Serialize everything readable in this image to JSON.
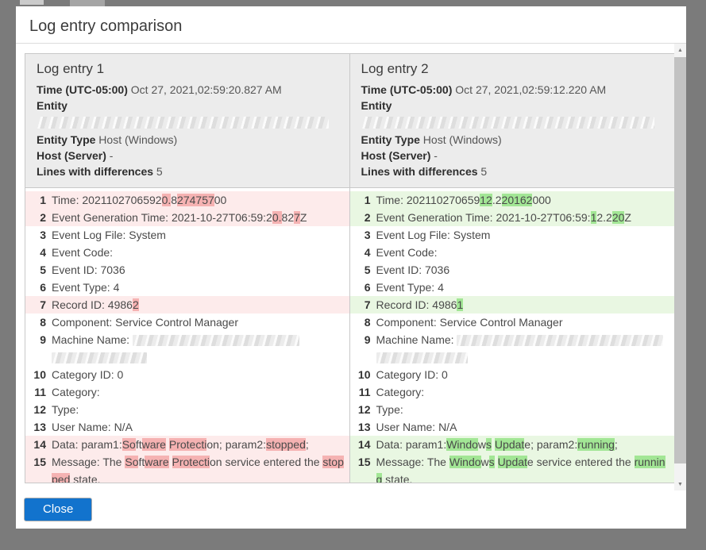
{
  "dialog": {
    "title": "Log entry comparison",
    "close_label": "Close"
  },
  "icons": {
    "scroll_up": "▲",
    "scroll_down": "▼"
  },
  "colors": {
    "backdrop": "#7b7b7b",
    "close_button": "#1273cd",
    "removed_row_bg": "#fdebeb",
    "removed_char_bg": "#f5b2b2",
    "added_row_bg": "#e9f7e2",
    "added_char_bg": "#a2e695",
    "panel_header_bg": "#ececec"
  },
  "panels": [
    {
      "title": "Log entry 1",
      "diff_color": "red",
      "fields": [
        {
          "label": "Time (UTC-05:00)",
          "value": "Oct 27, 2021,02:59:20.827 AM"
        },
        {
          "label": "Entity",
          "value": "",
          "redacted": true
        },
        {
          "label": "Entity Type",
          "value": "Host (Windows)"
        },
        {
          "label": "Host (Server)",
          "value": "-"
        },
        {
          "label": "Lines with differences",
          "value": "5"
        }
      ],
      "lines": [
        {
          "num": 1,
          "changed": true,
          "segments": [
            [
              "Time: 2021102706592",
              0
            ],
            [
              "0.",
              1
            ],
            [
              "8",
              0
            ],
            [
              "274757",
              1
            ],
            [
              "00",
              0
            ]
          ]
        },
        {
          "num": 2,
          "changed": true,
          "segments": [
            [
              "Event Generation Time: 2021-10-27T06:59:2",
              0
            ],
            [
              "0.",
              1
            ],
            [
              "82",
              0
            ],
            [
              "7",
              1
            ],
            [
              "Z",
              0
            ]
          ]
        },
        {
          "num": 3,
          "changed": false,
          "segments": [
            [
              "Event Log File: System",
              0
            ]
          ]
        },
        {
          "num": 4,
          "changed": false,
          "segments": [
            [
              "Event Code:",
              0
            ]
          ]
        },
        {
          "num": 5,
          "changed": false,
          "segments": [
            [
              "Event ID: 7036",
              0
            ]
          ]
        },
        {
          "num": 6,
          "changed": false,
          "segments": [
            [
              "Event Type: 4",
              0
            ]
          ]
        },
        {
          "num": 7,
          "changed": true,
          "segments": [
            [
              "Record ID: 4986",
              0
            ],
            [
              "2",
              1
            ]
          ]
        },
        {
          "num": 8,
          "changed": false,
          "segments": [
            [
              "Component: Service Control Manager",
              0
            ]
          ]
        },
        {
          "num": 9,
          "changed": false,
          "segments": [
            [
              "Machine Name: ",
              0
            ],
            {
              "redact": 210
            },
            {
              "br": true
            },
            {
              "redact": 120
            }
          ]
        },
        {
          "num": 10,
          "changed": false,
          "segments": [
            [
              "Category ID: 0",
              0
            ]
          ]
        },
        {
          "num": 11,
          "changed": false,
          "segments": [
            [
              "Category:",
              0
            ]
          ]
        },
        {
          "num": 12,
          "changed": false,
          "segments": [
            [
              "Type:",
              0
            ]
          ]
        },
        {
          "num": 13,
          "changed": false,
          "segments": [
            [
              "User Name: N/A",
              0
            ]
          ]
        },
        {
          "num": 14,
          "changed": true,
          "segments": [
            [
              "Data: param1:",
              0
            ],
            [
              "So",
              1
            ],
            [
              "ft",
              0
            ],
            [
              "ware",
              1
            ],
            [
              " ",
              0
            ],
            [
              "Protecti",
              1
            ],
            [
              "on",
              0
            ],
            [
              "; param2:",
              0
            ],
            [
              "stopped",
              1
            ],
            [
              ";",
              0
            ]
          ]
        },
        {
          "num": 15,
          "changed": true,
          "segments": [
            [
              "Message: The ",
              0
            ],
            [
              "So",
              1
            ],
            [
              "ft",
              0
            ],
            [
              "ware",
              1
            ],
            [
              " ",
              0
            ],
            [
              "Protecti",
              1
            ],
            [
              "on",
              0
            ],
            [
              " service entered the ",
              0
            ],
            [
              "stopped",
              1
            ],
            [
              " state.",
              0
            ]
          ]
        }
      ]
    },
    {
      "title": "Log entry 2",
      "diff_color": "green",
      "fields": [
        {
          "label": "Time (UTC-05:00)",
          "value": "Oct 27, 2021,02:59:12.220 AM"
        },
        {
          "label": "Entity",
          "value": "",
          "redacted": true
        },
        {
          "label": "Entity Type",
          "value": "Host (Windows)"
        },
        {
          "label": "Host (Server)",
          "value": "-"
        },
        {
          "label": "Lines with differences",
          "value": "5"
        }
      ],
      "lines": [
        {
          "num": 1,
          "changed": true,
          "segments": [
            [
              "Time: 202110270659",
              0
            ],
            [
              "12",
              1
            ],
            [
              ".2",
              0
            ],
            [
              "20162",
              1
            ],
            [
              "000",
              0
            ]
          ]
        },
        {
          "num": 2,
          "changed": true,
          "segments": [
            [
              "Event Generation Time: 2021-10-27T06:59:",
              0
            ],
            [
              "1",
              1
            ],
            [
              "2.2",
              0
            ],
            [
              "20",
              1
            ],
            [
              "Z",
              0
            ]
          ]
        },
        {
          "num": 3,
          "changed": false,
          "segments": [
            [
              "Event Log File: System",
              0
            ]
          ]
        },
        {
          "num": 4,
          "changed": false,
          "segments": [
            [
              "Event Code:",
              0
            ]
          ]
        },
        {
          "num": 5,
          "changed": false,
          "segments": [
            [
              "Event ID: 7036",
              0
            ]
          ]
        },
        {
          "num": 6,
          "changed": false,
          "segments": [
            [
              "Event Type: 4",
              0
            ]
          ]
        },
        {
          "num": 7,
          "changed": true,
          "segments": [
            [
              "Record ID: 4986",
              0
            ],
            [
              "1",
              1
            ]
          ]
        },
        {
          "num": 8,
          "changed": false,
          "segments": [
            [
              "Component: Service Control Manager",
              0
            ]
          ]
        },
        {
          "num": 9,
          "changed": false,
          "segments": [
            [
              "Machine Name: ",
              0
            ],
            {
              "redact": 260
            },
            {
              "br": true
            },
            {
              "redact": 115
            }
          ]
        },
        {
          "num": 10,
          "changed": false,
          "segments": [
            [
              "Category ID: 0",
              0
            ]
          ]
        },
        {
          "num": 11,
          "changed": false,
          "segments": [
            [
              "Category:",
              0
            ]
          ]
        },
        {
          "num": 12,
          "changed": false,
          "segments": [
            [
              "Type:",
              0
            ]
          ]
        },
        {
          "num": 13,
          "changed": false,
          "segments": [
            [
              "User Name: N/A",
              0
            ]
          ]
        },
        {
          "num": 14,
          "changed": true,
          "segments": [
            [
              "Data: param1:",
              0
            ],
            [
              "Windo",
              1
            ],
            [
              "w",
              0
            ],
            [
              "s",
              1
            ],
            [
              " ",
              0
            ],
            [
              "Updat",
              1
            ],
            [
              "e",
              0
            ],
            [
              "; param2:",
              0
            ],
            [
              "running",
              1
            ],
            [
              ";",
              0
            ]
          ]
        },
        {
          "num": 15,
          "changed": true,
          "segments": [
            [
              "Message: The ",
              0
            ],
            [
              "Windo",
              1
            ],
            [
              "w",
              0
            ],
            [
              "s",
              1
            ],
            [
              " ",
              0
            ],
            [
              "Updat",
              1
            ],
            [
              "e",
              0
            ],
            [
              " service entered the ",
              0
            ],
            [
              "running",
              1
            ],
            [
              " state.",
              0
            ]
          ]
        }
      ]
    }
  ]
}
